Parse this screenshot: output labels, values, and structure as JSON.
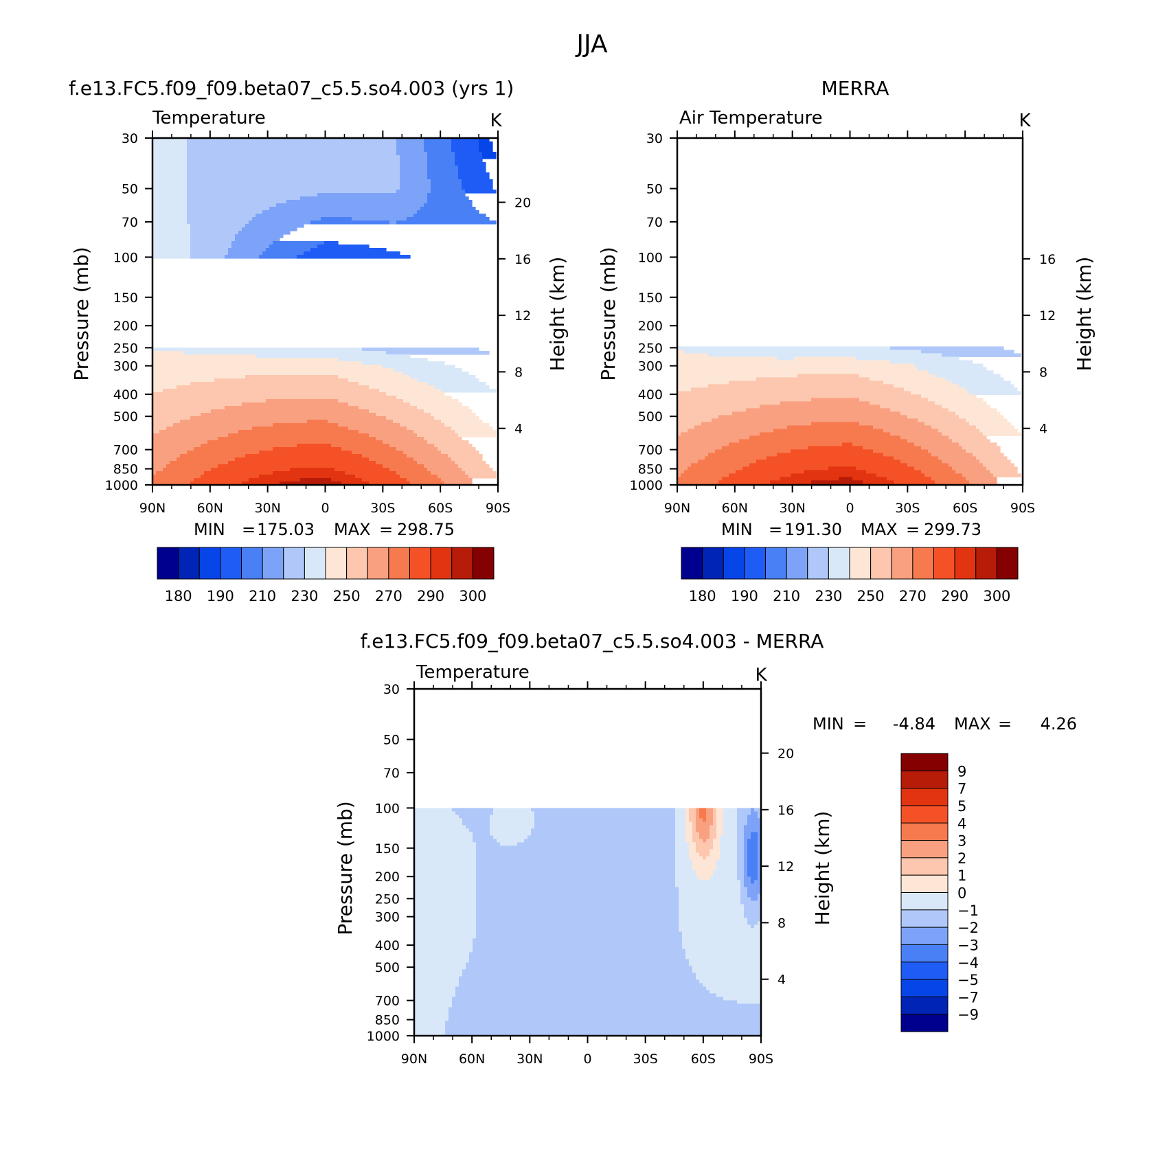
{
  "figure": {
    "title": "JJA"
  },
  "chart_data": [
    {
      "type": "heatmap",
      "panel": "model",
      "case_title": "f.e13.FC5.f09_f09.beta07_c5.5.so4.003 (yrs 1)",
      "left_label": "Temperature",
      "units": "K",
      "ylabel": "Pressure (mb)",
      "y2label": "Height (km)",
      "x_ticks": [
        "90N",
        "60N",
        "30N",
        "0",
        "30S",
        "60S",
        "90S"
      ],
      "y_ticks": [
        "30",
        "50",
        "70",
        "100",
        "150",
        "200",
        "250",
        "300",
        "400",
        "500",
        "700",
        "850",
        "1000"
      ],
      "y2_ticks": [
        "20",
        "16",
        "12",
        "8",
        "4"
      ],
      "min_label": "MIN",
      "min_value": "175.03",
      "max_label": "MAX",
      "max_value": "298.75",
      "data_top_mb": 30,
      "field": "model",
      "colorbar_labels": [
        "180",
        "190",
        "210",
        "230",
        "250",
        "270",
        "290",
        "300"
      ]
    },
    {
      "type": "heatmap",
      "panel": "obs",
      "case_title": "MERRA",
      "left_label": "Air Temperature",
      "units": "K",
      "ylabel": "Pressure (mb)",
      "y2label": "Height (km)",
      "x_ticks": [
        "90N",
        "60N",
        "30N",
        "0",
        "30S",
        "60S",
        "90S"
      ],
      "y_ticks": [
        "30",
        "50",
        "70",
        "100",
        "150",
        "200",
        "250",
        "300",
        "400",
        "500",
        "700",
        "850",
        "1000"
      ],
      "y2_ticks": [
        "16",
        "12",
        "8",
        "4"
      ],
      "min_label": "MIN",
      "min_value": "191.30",
      "max_label": "MAX",
      "max_value": "299.73",
      "data_top_mb": 100,
      "field": "obs",
      "colorbar_labels": [
        "180",
        "190",
        "210",
        "230",
        "250",
        "270",
        "290",
        "300"
      ]
    },
    {
      "type": "heatmap",
      "panel": "diff",
      "case_title": "f.e13.FC5.f09_f09.beta07_c5.5.so4.003 - MERRA",
      "left_label": "Temperature",
      "units": "K",
      "ylabel": "Pressure (mb)",
      "y2label": "Height (km)",
      "x_ticks": [
        "90N",
        "60N",
        "30N",
        "0",
        "30S",
        "60S",
        "90S"
      ],
      "y_ticks": [
        "30",
        "50",
        "70",
        "100",
        "150",
        "200",
        "250",
        "300",
        "400",
        "500",
        "700",
        "850",
        "1000"
      ],
      "y2_ticks": [
        "20",
        "16",
        "12",
        "8",
        "4"
      ],
      "min_label": "MIN",
      "min_value": "-4.84",
      "max_label": "MAX",
      "max_value": "4.26",
      "data_top_mb": 100,
      "field": "diff",
      "colorbar_labels": [
        "9",
        "7",
        "5",
        "4",
        "3",
        "2",
        "1",
        "0",
        "-1",
        "-2",
        "-3",
        "-4",
        "-5",
        "-7",
        "-9"
      ]
    }
  ],
  "temperature_palette": [
    "#00008f",
    "#0024b5",
    "#0645e8",
    "#1f5cf5",
    "#4a80f5",
    "#7da3f8",
    "#b0c8f9",
    "#d9e8f8",
    "#fde6d6",
    "#fcc7ae",
    "#f9a080",
    "#f77a4f",
    "#f55126",
    "#e23410",
    "#b71c08",
    "#850000"
  ],
  "temperature_levels": [
    180,
    185,
    190,
    200,
    210,
    220,
    230,
    240,
    250,
    260,
    270,
    280,
    290,
    295,
    300
  ],
  "difference_palette": [
    "#850000",
    "#b71c08",
    "#e23410",
    "#f55126",
    "#f77a4f",
    "#f9a080",
    "#fcc7ae",
    "#fde6d6",
    "#d9e8f8",
    "#b0c8f9",
    "#7da3f8",
    "#4a80f5",
    "#1f5cf5",
    "#0645e8",
    "#0024b5",
    "#00008f"
  ],
  "difference_levels": [
    -9,
    -7,
    -5,
    -4,
    -3,
    -2,
    -1,
    0,
    1,
    2,
    3,
    4,
    5,
    7,
    9
  ]
}
